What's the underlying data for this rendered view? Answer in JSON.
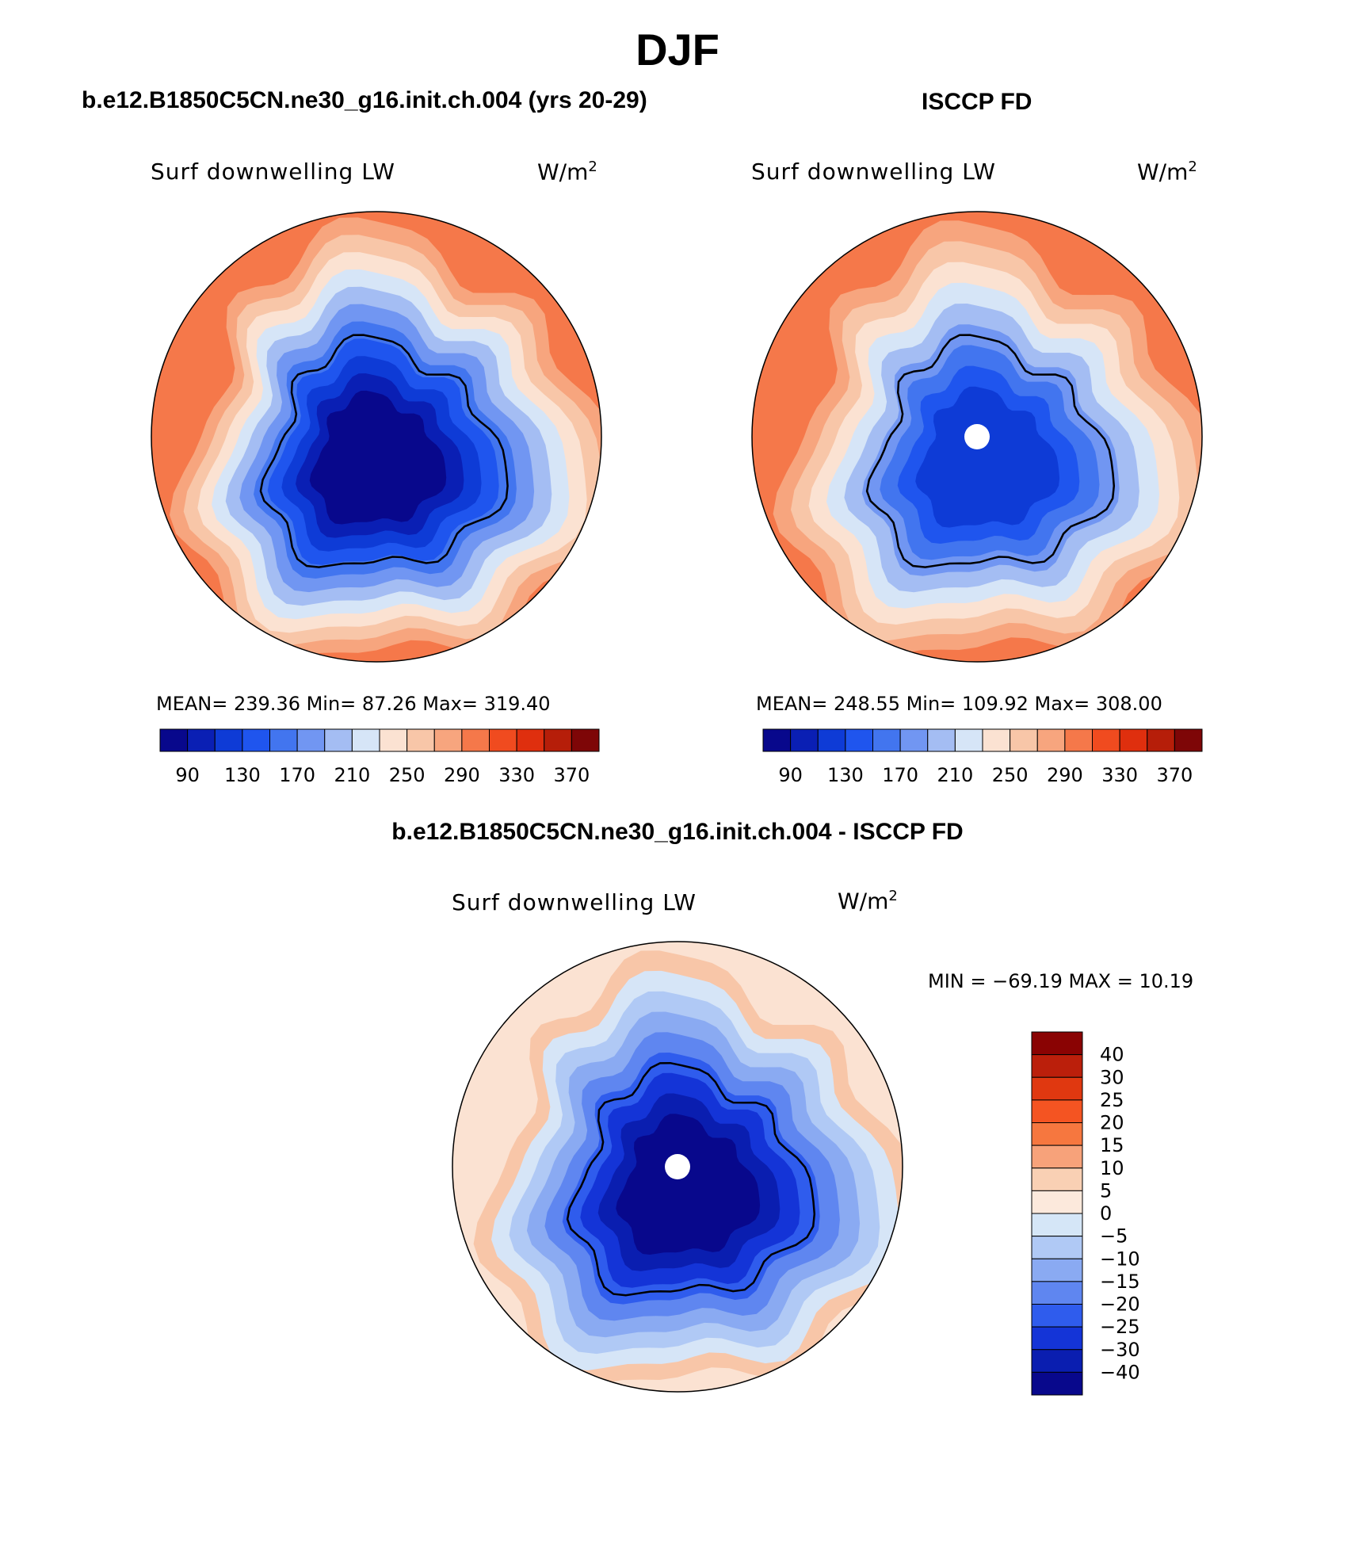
{
  "title": "DJF",
  "panels": [
    {
      "id": "model",
      "title": "b.e12.B1850C5CN.ne30_g16.init.ch.004 (yrs 20-29)",
      "field": "Surf downwelling LW",
      "units": "W/m",
      "units_sup": "2",
      "stats": "MEAN= 239.36   Min=  87.26   Max= 319.40",
      "missing_pole": false
    },
    {
      "id": "obs",
      "title": "ISCCP FD",
      "field": "Surf downwelling LW",
      "units": "W/m",
      "units_sup": "2",
      "stats": "MEAN= 248.55   Min= 109.92   Max= 308.00",
      "missing_pole": true
    },
    {
      "id": "diff",
      "title": "b.e12.B1850C5CN.ne30_g16.init.ch.004 - ISCCP FD",
      "field": "Surf downwelling LW",
      "units": "W/m",
      "units_sup": "2",
      "stats": "MIN = −69.19  MAX =   10.19",
      "missing_pole": true
    }
  ],
  "abs_colorbar": {
    "colors": [
      "#08088c",
      "#0a1fb4",
      "#0e3bd6",
      "#1f55ee",
      "#4275ef",
      "#7196f2",
      "#a4bdf3",
      "#d6e5f7",
      "#fbe2d2",
      "#f8c6a8",
      "#f7a57e",
      "#f5784a",
      "#f04b1f",
      "#df2f0e",
      "#b61e09",
      "#7e0607"
    ],
    "labels": [
      "90",
      "130",
      "170",
      "210",
      "250",
      "290",
      "330",
      "370"
    ]
  },
  "diff_colorbar": {
    "colors": [
      "#8a0303",
      "#bb1f0b",
      "#e03810",
      "#f45422",
      "#f6773f",
      "#f7a27a",
      "#f9d0b4",
      "#fce9dc",
      "#d5e6f7",
      "#b0c9f5",
      "#8aaaf2",
      "#5f86f0",
      "#2f5ced",
      "#1434d7",
      "#0a1eb0",
      "#08088c"
    ],
    "labels": [
      "40",
      "30",
      "25",
      "20",
      "15",
      "10",
      "5",
      "0",
      "−5",
      "−10",
      "−15",
      "−20",
      "−25",
      "−30",
      "−40"
    ]
  },
  "map_fill": {
    "model": {
      "outer": "#f5784a",
      "rings": [
        "#f7a57e",
        "#f8c6a8",
        "#fbe2d2",
        "#d6e5f7",
        "#a4bdf3",
        "#7196f2",
        "#4275ef",
        "#1f55ee",
        "#0e3bd6",
        "#0a1fb4",
        "#08088c"
      ]
    },
    "obs": {
      "outer": "#f5784a",
      "rings": [
        "#f7a57e",
        "#f8c6a8",
        "#fbe2d2",
        "#d6e5f7",
        "#a4bdf3",
        "#7196f2",
        "#4275ef",
        "#1f55ee",
        "#0e3bd6"
      ]
    },
    "diff": {
      "outer": "#fbe2d2",
      "rings": [
        "#f8c6a8",
        "#d6e5f7",
        "#b0c9f5",
        "#8aaaf2",
        "#5f86f0",
        "#2f5ced",
        "#1434d7",
        "#0a1eb0",
        "#08088c"
      ]
    }
  }
}
